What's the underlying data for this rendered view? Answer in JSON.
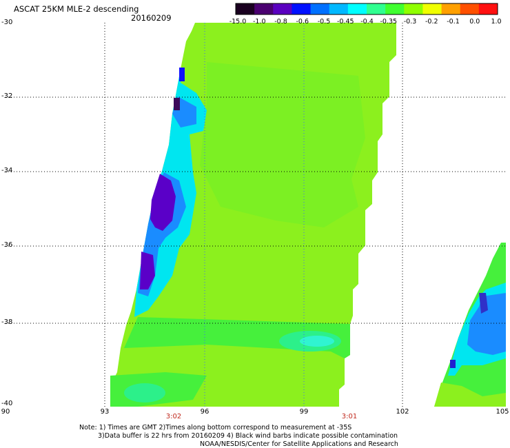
{
  "header": {
    "title": "ASCAT 25KM MLE-2 descending",
    "date": "20160209"
  },
  "colorbar": {
    "labels": [
      "-15.0",
      "-1.0",
      "-0.8",
      "-0.6",
      "-0.5",
      "-0.45",
      "-0.4",
      "-0.35",
      "-0.3",
      "-0.2",
      "-0.1",
      "0.0",
      "1.0"
    ],
    "colors": [
      "#1a0020",
      "#4a0070",
      "#5a00c0",
      "#0010ff",
      "#0070ff",
      "#00b8ff",
      "#00ffff",
      "#30ff90",
      "#40ff30",
      "#90ff00",
      "#f0ff00",
      "#ffa000",
      "#ff5000",
      "#ff1010"
    ]
  },
  "axes": {
    "y_labels": [
      "-30",
      "-32",
      "-34",
      "-36",
      "-38",
      "-40"
    ],
    "x_labels": [
      "90",
      "93",
      "96",
      "99",
      "102",
      "105"
    ],
    "time_labels": [
      "3:02",
      "3:01"
    ]
  },
  "notes": [
    "Note: 1) Times are GMT 2)Times along bottom correspond to measurement at -35S",
    "3)Data buffer is 22 hrs from 20160209 4) Black wind barbs indicate possible contamination",
    "NOAA/NESDIS/Center for Satellite Applications and Research"
  ],
  "palette": {
    "dark_purple": "#3c0a5a",
    "purple": "#5a00c8",
    "blue": "#1030ff",
    "light_blue": "#1a8cff",
    "cyan": "#00e6f0",
    "aqua_green": "#2cf08a",
    "green": "#46f03c",
    "yellow_green": "#8cf01e",
    "grid": "#000000",
    "time_label": "#c0281c"
  }
}
